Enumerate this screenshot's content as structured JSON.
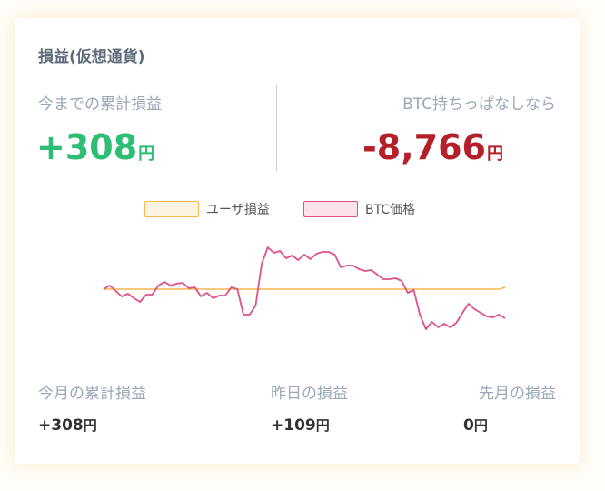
{
  "card": {
    "title": "損益(仮想通貨)",
    "cumulative_label": "今までの累計損益",
    "cumulative_value": "+308",
    "cumulative_unit": "円",
    "hodl_label": "BTC持ちっぱなしなら",
    "hodl_value": "-8,766",
    "hodl_unit": "円"
  },
  "legend": {
    "user": "ユーザ損益",
    "btc": "BTC価格"
  },
  "stats": {
    "month_label": "今月の累計損益",
    "month_value": "+308",
    "yesterday_label": "昨日の損益",
    "yesterday_value": "+109",
    "lastmonth_label": "先月の損益",
    "lastmonth_value": "0",
    "unit": "円"
  },
  "colors": {
    "user_line": "#f5b74e",
    "user_fill": "#fdf3e3",
    "btc_line": "#e0508a",
    "btc_fill": "#fbe1ea",
    "positive": "#2dbd74",
    "negative": "#b3202a"
  },
  "chart_data": {
    "type": "line",
    "grid": false,
    "legend_position": "top",
    "series": [
      {
        "name": "ユーザ損益",
        "values": [
          0.2,
          0.2,
          0.2,
          0.2,
          0.2,
          0.2,
          0.2,
          0.2,
          0.2,
          0.2,
          0.2,
          0.2,
          0.2,
          0.2,
          0.2,
          0.2,
          0.2,
          0.2,
          0.2,
          0.2,
          0.2,
          0.2,
          0.2,
          0.2,
          0.2,
          0.2,
          0.2,
          0.2,
          0.2,
          0.2,
          0.2,
          0.2,
          0.2,
          0.2,
          0.2,
          0.2,
          0.2,
          0.2,
          0.2,
          0.2,
          0.2,
          0.2,
          0.2,
          0.2,
          0.2,
          0.2,
          0.2,
          0.2,
          0.2,
          0.2,
          0.2,
          0.2,
          0.2,
          0.2,
          0.2,
          0.2,
          0.2,
          0.2,
          0.2,
          0.2,
          0.2,
          0.2,
          0.2,
          0.2,
          0.2,
          0.2,
          0.2,
          0.2,
          0.2,
          0.2,
          0.2,
          0.2,
          0.2,
          0.4
        ]
      },
      {
        "name": "BTC価格",
        "values": [
          0.2,
          0.6,
          0.0,
          -0.6,
          -0.3,
          -0.8,
          -1.2,
          -0.4,
          -0.4,
          0.6,
          1.0,
          0.6,
          0.8,
          0.9,
          0.3,
          0.4,
          -0.6,
          -0.2,
          -0.8,
          -0.5,
          -0.5,
          0.4,
          0.2,
          -2.6,
          -2.6,
          -1.6,
          3.0,
          4.8,
          4.2,
          4.4,
          3.6,
          3.9,
          3.4,
          4.0,
          3.5,
          4.1,
          4.3,
          4.3,
          4.0,
          2.6,
          2.8,
          2.8,
          2.4,
          2.2,
          2.3,
          1.8,
          1.3,
          1.3,
          1.4,
          1.1,
          -0.2,
          0.1,
          -2.6,
          -4.2,
          -3.4,
          -4.0,
          -3.6,
          -4.0,
          -3.5,
          -2.4,
          -1.4,
          -2.0,
          -2.4,
          -2.8,
          -2.9,
          -2.6,
          -3.0
        ]
      }
    ]
  }
}
